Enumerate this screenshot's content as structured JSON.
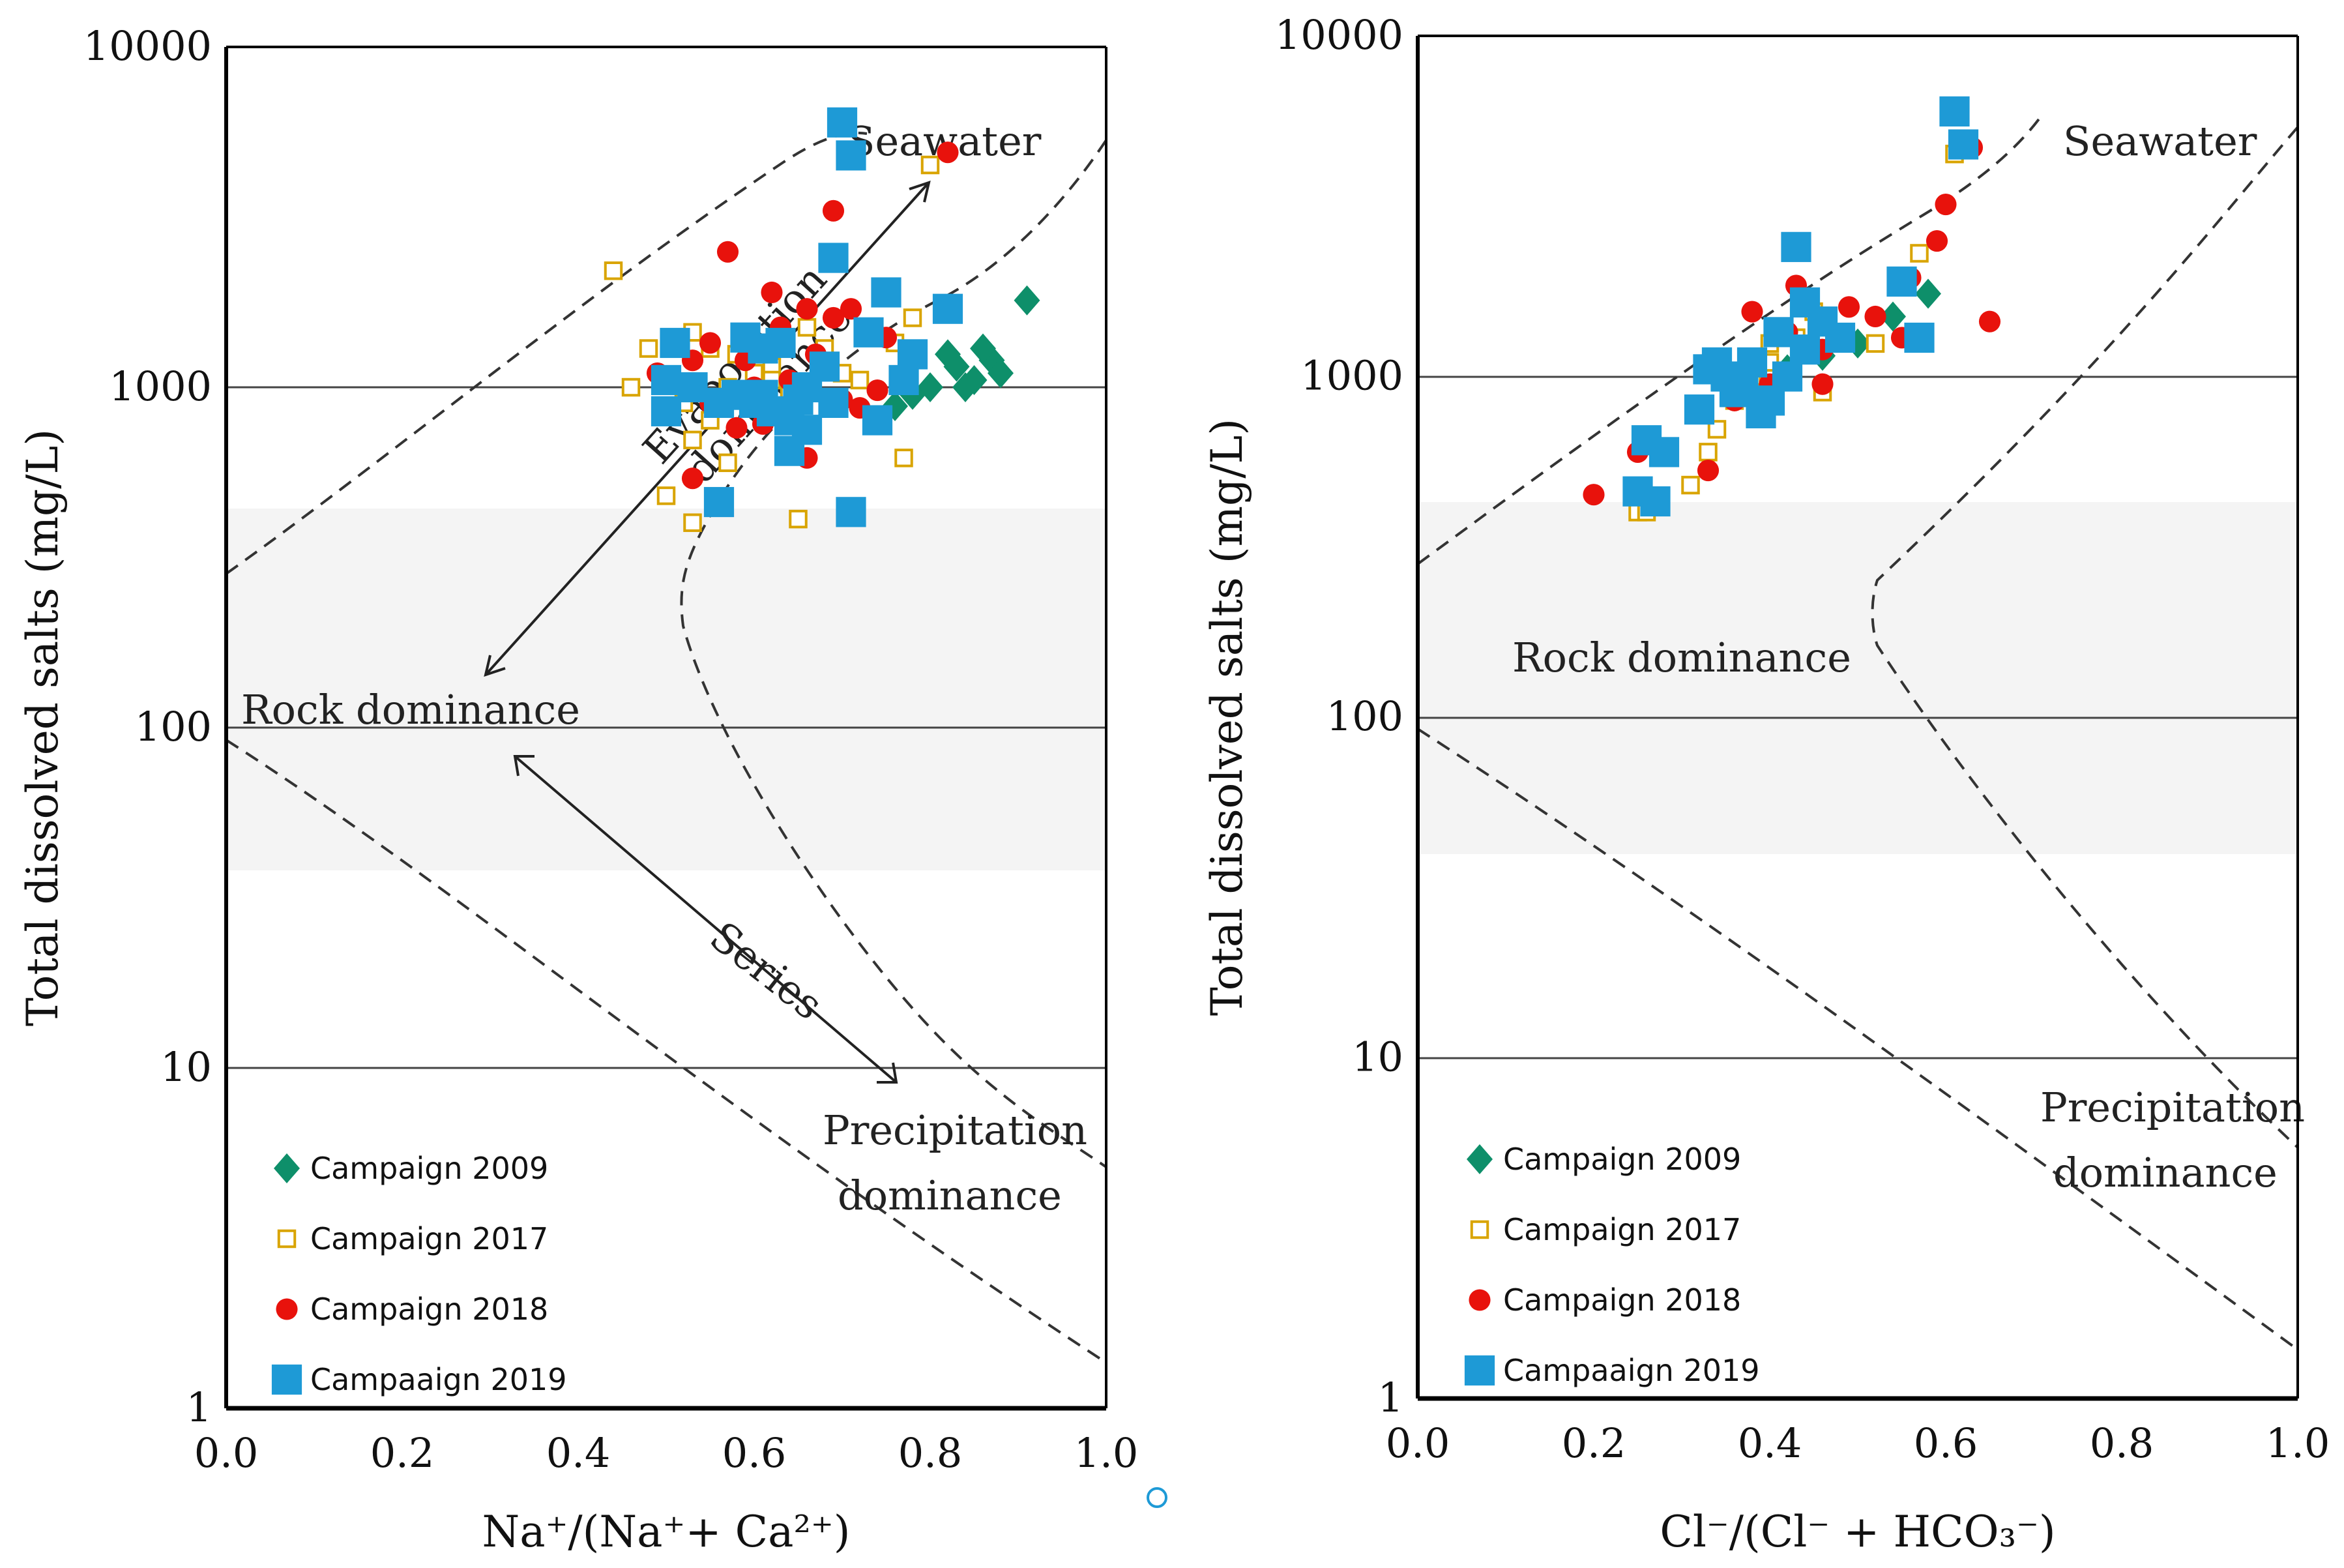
{
  "colors": {
    "c2009": "#0e8f6a",
    "c2017_stroke": "#d9a400",
    "c2018": "#e8120c",
    "c2019": "#1e9ad6",
    "axis": "#000000",
    "grid": "#333333",
    "band": "#f4f4f4"
  },
  "chart_data": [
    {
      "type": "scatter",
      "title": "",
      "xlabel": "Na⁺/(Na⁺+ Ca²⁺)",
      "ylabel": "Total dissolved salts (mg/L)",
      "xlim": [
        0,
        1
      ],
      "ylim": [
        1,
        10000
      ],
      "yscale": "log",
      "x_ticks": [
        "0.0",
        "0.2",
        "0.4",
        "0.6",
        "0.8",
        "1.0"
      ],
      "y_ticks": [
        "1",
        "10",
        "100",
        "1000",
        "10000"
      ],
      "annotations": {
        "seawater": "Seawater",
        "rock": "Rock dominance",
        "precip_1": "Precipitation",
        "precip_2": "dominance",
        "evap_1": "Evaporation",
        "evap_2": "dominance",
        "series": "Series"
      },
      "legend": [
        "Campaign 2009",
        "Campaign 2017",
        "Campaign 2018",
        "Campaaign 2019"
      ],
      "series": [
        {
          "name": "Campaign 2009",
          "points": [
            [
              0.91,
              1800
            ],
            [
              0.83,
              1150
            ],
            [
              0.85,
              1050
            ],
            [
              0.87,
              1200
            ],
            [
              0.88,
              1100
            ],
            [
              0.84,
              1000
            ],
            [
              0.8,
              1000
            ],
            [
              0.86,
              1300
            ],
            [
              0.78,
              950
            ],
            [
              0.82,
              1250
            ],
            [
              0.76,
              880
            ]
          ]
        },
        {
          "name": "Campaign 2017",
          "points": [
            [
              0.44,
              2200
            ],
            [
              0.48,
              1300
            ],
            [
              0.53,
              1450
            ],
            [
              0.55,
              1300
            ],
            [
              0.58,
              1250
            ],
            [
              0.6,
              1100
            ],
            [
              0.62,
              1150
            ],
            [
              0.66,
              1500
            ],
            [
              0.68,
              1300
            ],
            [
              0.7,
              1100
            ],
            [
              0.72,
              1050
            ],
            [
              0.76,
              1350
            ],
            [
              0.78,
              1600
            ],
            [
              0.8,
              4500
            ],
            [
              0.52,
              900
            ],
            [
              0.55,
              800
            ],
            [
              0.57,
              1000
            ],
            [
              0.53,
              700
            ],
            [
              0.57,
              600
            ],
            [
              0.5,
              480
            ],
            [
              0.53,
              400
            ],
            [
              0.65,
              410
            ],
            [
              0.77,
              620
            ],
            [
              0.62,
              1050
            ],
            [
              0.64,
              980
            ],
            [
              0.46,
              1000
            ]
          ]
        },
        {
          "name": "Campaign 2018",
          "points": [
            [
              0.82,
              4900
            ],
            [
              0.69,
              3300
            ],
            [
              0.57,
              2500
            ],
            [
              0.62,
              1900
            ],
            [
              0.66,
              1700
            ],
            [
              0.71,
              1700
            ],
            [
              0.53,
              1200
            ],
            [
              0.59,
              1200
            ],
            [
              0.63,
              1500
            ],
            [
              0.69,
              1600
            ],
            [
              0.75,
              1400
            ],
            [
              0.55,
              1350
            ],
            [
              0.6,
              1000
            ],
            [
              0.64,
              1050
            ],
            [
              0.67,
              1250
            ],
            [
              0.7,
              920
            ],
            [
              0.72,
              870
            ],
            [
              0.61,
              780
            ],
            [
              0.66,
              620
            ],
            [
              0.53,
              540
            ],
            [
              0.58,
              760
            ],
            [
              0.49,
              1100
            ],
            [
              0.74,
              980
            ],
            [
              0.55,
              900
            ]
          ]
        },
        {
          "name": "Campaaign 2019",
          "points": [
            [
              0.7,
              6000
            ],
            [
              0.71,
              4800
            ],
            [
              0.69,
              2400
            ],
            [
              0.75,
              1900
            ],
            [
              0.82,
              1700
            ],
            [
              0.73,
              1450
            ],
            [
              0.59,
              1400
            ],
            [
              0.51,
              1350
            ],
            [
              0.61,
              1300
            ],
            [
              0.63,
              1350
            ],
            [
              0.78,
              1250
            ],
            [
              0.68,
              1150
            ],
            [
              0.5,
              1050
            ],
            [
              0.56,
              900
            ],
            [
              0.6,
              900
            ],
            [
              0.62,
              850
            ],
            [
              0.64,
              800
            ],
            [
              0.66,
              1000
            ],
            [
              0.58,
              950
            ],
            [
              0.5,
              850
            ],
            [
              0.77,
              1050
            ],
            [
              0.74,
              800
            ],
            [
              0.64,
              650
            ],
            [
              0.66,
              750
            ],
            [
              0.56,
              460
            ],
            [
              0.71,
              430
            ],
            [
              0.53,
              1000
            ],
            [
              0.65,
              920
            ],
            [
              0.61,
              950
            ],
            [
              0.69,
              900
            ]
          ]
        }
      ]
    },
    {
      "type": "scatter",
      "title": "",
      "xlabel": "Cl⁻/(Cl⁻ + HCO₃⁻)",
      "ylabel": "Total dissolved salts (mg/L)",
      "xlim": [
        0,
        1
      ],
      "ylim": [
        1,
        10000
      ],
      "yscale": "log",
      "x_ticks": [
        "0.0",
        "0.2",
        "0.4",
        "0.6",
        "0.8",
        "1.0"
      ],
      "y_ticks": [
        "1",
        "10",
        "100",
        "1000",
        "10000"
      ],
      "annotations": {
        "seawater": "Seawater",
        "rock": "Rock dominance",
        "precip_1": "Precipitation",
        "precip_2": "dominance"
      },
      "legend": [
        "Campaign 2009",
        "Campaign 2017",
        "Campaign 2018",
        "Campaaign 2019"
      ],
      "series": [
        {
          "name": "Campaign 2009",
          "points": [
            [
              0.58,
              1750
            ],
            [
              0.5,
              1250
            ],
            [
              0.46,
              1150
            ],
            [
              0.54,
              1500
            ],
            [
              0.42,
              1050
            ]
          ]
        },
        {
          "name": "Campaign 2017",
          "points": [
            [
              0.61,
              4500
            ],
            [
              0.57,
              2300
            ],
            [
              0.52,
              1250
            ],
            [
              0.45,
              1550
            ],
            [
              0.43,
              1300
            ],
            [
              0.4,
              1250
            ],
            [
              0.46,
              900
            ],
            [
              0.33,
              600
            ],
            [
              0.34,
              700
            ],
            [
              0.31,
              480
            ],
            [
              0.25,
              400
            ],
            [
              0.26,
              400
            ],
            [
              0.36,
              850
            ],
            [
              0.38,
              1000
            ],
            [
              0.4,
              1100
            ]
          ]
        },
        {
          "name": "Campaign 2018",
          "points": [
            [
              0.63,
              4700
            ],
            [
              0.6,
              3200
            ],
            [
              0.59,
              2500
            ],
            [
              0.65,
              1450
            ],
            [
              0.56,
              1950
            ],
            [
              0.52,
              1500
            ],
            [
              0.49,
              1600
            ],
            [
              0.43,
              1850
            ],
            [
              0.38,
              1550
            ],
            [
              0.46,
              1200
            ],
            [
              0.4,
              950
            ],
            [
              0.36,
              850
            ],
            [
              0.46,
              950
            ],
            [
              0.33,
              530
            ],
            [
              0.25,
              600
            ],
            [
              0.2,
              450
            ],
            [
              0.55,
              1300
            ],
            [
              0.42,
              1350
            ]
          ]
        },
        {
          "name": "Campaaign 2019",
          "points": [
            [
              0.61,
              6000
            ],
            [
              0.62,
              4800
            ],
            [
              0.43,
              2400
            ],
            [
              0.55,
              1900
            ],
            [
              0.57,
              1300
            ],
            [
              0.44,
              1650
            ],
            [
              0.41,
              1350
            ],
            [
              0.46,
              1450
            ],
            [
              0.38,
              1100
            ],
            [
              0.35,
              1000
            ],
            [
              0.33,
              1050
            ],
            [
              0.32,
              800
            ],
            [
              0.36,
              900
            ],
            [
              0.4,
              850
            ],
            [
              0.42,
              1000
            ],
            [
              0.39,
              780
            ],
            [
              0.26,
              650
            ],
            [
              0.28,
              600
            ],
            [
              0.25,
              460
            ],
            [
              0.27,
              430
            ],
            [
              0.37,
              950
            ],
            [
              0.44,
              1200
            ],
            [
              0.48,
              1300
            ],
            [
              0.34,
              1100
            ]
          ]
        }
      ]
    }
  ]
}
